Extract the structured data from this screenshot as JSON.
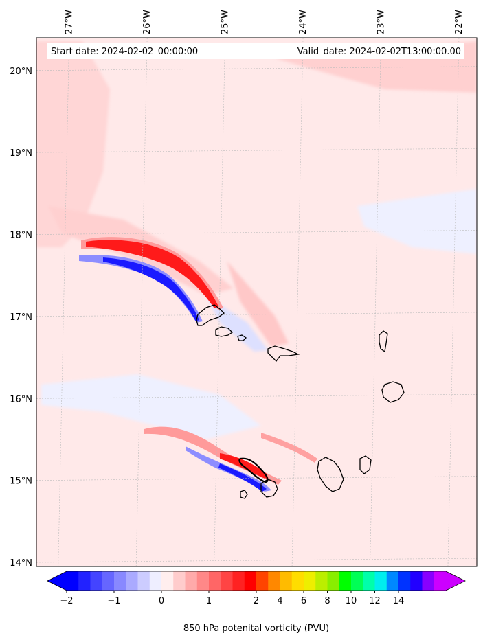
{
  "header": {
    "start_label": "Start date: 2024-02-02_00:00:00",
    "valid_label": "Valid_date: 2024-02-02T13:00:00.00"
  },
  "map": {
    "lon_range": [
      -27.35,
      -21.7
    ],
    "lat_range": [
      13.95,
      20.4
    ],
    "lon_ticks": [
      {
        "value": -27,
        "label": "27°W"
      },
      {
        "value": -26,
        "label": "26°W"
      },
      {
        "value": -25,
        "label": "25°W"
      },
      {
        "value": -24,
        "label": "24°W"
      },
      {
        "value": -23,
        "label": "23°W"
      },
      {
        "value": -22,
        "label": "22°W"
      }
    ],
    "lat_ticks": [
      {
        "value": 20,
        "label": "20°N"
      },
      {
        "value": 19,
        "label": "19°N"
      },
      {
        "value": 18,
        "label": "18°N"
      },
      {
        "value": 17,
        "label": "17°N"
      },
      {
        "value": 16,
        "label": "16°N"
      },
      {
        "value": 15,
        "label": "15°N"
      },
      {
        "value": 14,
        "label": "14°N"
      }
    ],
    "background_color": "#ffe9e9",
    "gridlines": true
  },
  "colorbar": {
    "title": "850 hPa potenital vorticity (PVU)",
    "ticks": [
      "−2",
      "−1",
      "0",
      "1",
      "2",
      "4",
      "6",
      "8",
      "10",
      "12",
      "14"
    ],
    "colors": [
      "#0000ff",
      "#2222ff",
      "#4444ff",
      "#6666ff",
      "#8888ff",
      "#aaaaff",
      "#ccccff",
      "#eeeeff",
      "#ffeeee",
      "#ffcccc",
      "#ffaaaa",
      "#ff8888",
      "#ff6666",
      "#ff4444",
      "#ff2222",
      "#ff0000",
      "#ff4400",
      "#ff8800",
      "#ffbb00",
      "#ffdd00",
      "#eeee00",
      "#bbee00",
      "#88ee00",
      "#00ff00",
      "#00ff55",
      "#00ffaa",
      "#00eeee",
      "#0088ff",
      "#0033ff",
      "#2200ff",
      "#8800ff",
      "#cc00ff"
    ],
    "extend": "both"
  }
}
